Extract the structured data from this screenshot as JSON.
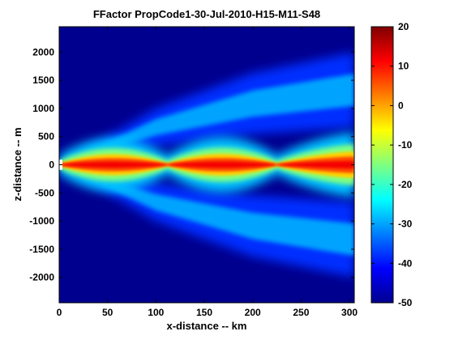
{
  "chart_data": {
    "type": "heatmap",
    "title": "FFactor  PropCode1-30-Jul-2010-H15-M11-S48",
    "xlabel": "x-distance -- km",
    "ylabel": "z-distance -- m",
    "xlim": [
      0,
      305
    ],
    "ylim": [
      -2450,
      2450
    ],
    "x_ticks": [
      0,
      50,
      100,
      150,
      200,
      250,
      300
    ],
    "y_ticks": [
      -2000,
      -1500,
      -1000,
      -500,
      0,
      500,
      1000,
      1500,
      2000
    ],
    "colorbar": {
      "colormap": "jet",
      "clim": [
        -50,
        20
      ],
      "ticks": [
        20,
        10,
        0,
        -10,
        -20,
        -30,
        -40,
        -50
      ]
    },
    "features": {
      "background_level": -50,
      "core_beam": {
        "peak_level": 10,
        "focus_x_km": [
          112,
          225
        ],
        "half_width_m": [
          {
            "x": 0,
            "z": 30
          },
          {
            "x": 60,
            "z": 200
          },
          {
            "x": 112,
            "z": 20
          },
          {
            "x": 170,
            "z": 200
          },
          {
            "x": 225,
            "z": 20
          },
          {
            "x": 280,
            "z": 230
          },
          {
            "x": 305,
            "z": 250
          }
        ]
      },
      "side_lobes": {
        "level": -30,
        "edge_z_m": [
          {
            "x": 0,
            "z": 0
          },
          {
            "x": 100,
            "z": 950
          },
          {
            "x": 200,
            "z": 1550
          },
          {
            "x": 305,
            "z": 1900
          }
        ]
      }
    }
  }
}
